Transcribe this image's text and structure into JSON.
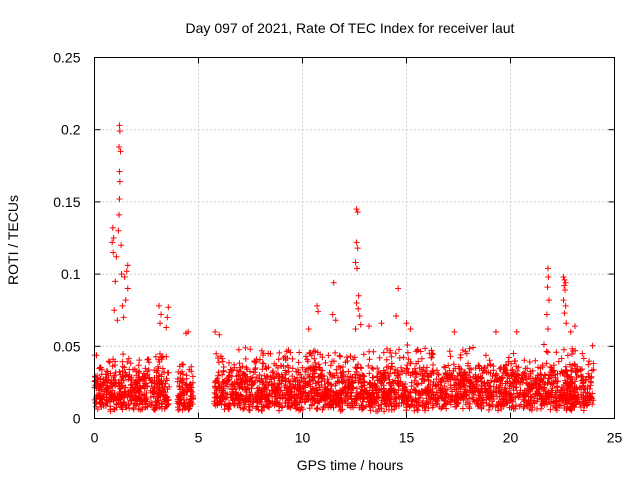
{
  "chart_data": {
    "type": "scatter",
    "title": "Day 097 of 2021, Rate Of TEC Index for receiver laut",
    "xlabel": "GPS time / hours",
    "ylabel": "ROTI / TECUs",
    "xlim": [
      0,
      25
    ],
    "ylim": [
      0,
      0.25
    ],
    "xticks": [
      0,
      5,
      10,
      15,
      20,
      25
    ],
    "xtick_labels": [
      "0",
      "5",
      "10",
      "15",
      "20",
      "25"
    ],
    "yticks": [
      0,
      0.05,
      0.1,
      0.15,
      0.2,
      0.25
    ],
    "ytick_labels": [
      "0",
      "0.05",
      "0.1",
      "0.15",
      "0.2",
      "0.25"
    ],
    "grid": true,
    "marker": "plus",
    "series": [
      {
        "name": "ROTI",
        "color": "#ff0000",
        "segments": [
          {
            "start": 0.0,
            "end": 3.6,
            "base": 0.018,
            "spread": 0.022,
            "max": 0.05
          },
          {
            "start": 4.0,
            "end": 4.75,
            "base": 0.018,
            "spread": 0.02,
            "max": 0.045
          },
          {
            "start": 5.75,
            "end": 24.0,
            "base": 0.018,
            "spread": 0.025,
            "max": 0.055
          }
        ],
        "peaks": [
          {
            "x": 1.2,
            "y": 0.203
          },
          {
            "x": 1.22,
            "y": 0.199
          },
          {
            "x": 1.18,
            "y": 0.188
          },
          {
            "x": 1.25,
            "y": 0.185
          },
          {
            "x": 1.2,
            "y": 0.171
          },
          {
            "x": 1.22,
            "y": 0.164
          },
          {
            "x": 1.2,
            "y": 0.152
          },
          {
            "x": 1.18,
            "y": 0.141
          },
          {
            "x": 1.15,
            "y": 0.13
          },
          {
            "x": 0.88,
            "y": 0.132
          },
          {
            "x": 0.92,
            "y": 0.125
          },
          {
            "x": 0.85,
            "y": 0.122
          },
          {
            "x": 1.28,
            "y": 0.12
          },
          {
            "x": 0.9,
            "y": 0.115
          },
          {
            "x": 1.05,
            "y": 0.112
          },
          {
            "x": 1.6,
            "y": 0.106
          },
          {
            "x": 1.55,
            "y": 0.102
          },
          {
            "x": 1.3,
            "y": 0.1
          },
          {
            "x": 1.45,
            "y": 0.098
          },
          {
            "x": 1.0,
            "y": 0.095
          },
          {
            "x": 1.6,
            "y": 0.09
          },
          {
            "x": 1.5,
            "y": 0.082
          },
          {
            "x": 1.35,
            "y": 0.078
          },
          {
            "x": 0.95,
            "y": 0.075
          },
          {
            "x": 1.4,
            "y": 0.07
          },
          {
            "x": 1.1,
            "y": 0.068
          },
          {
            "x": 3.1,
            "y": 0.078
          },
          {
            "x": 3.55,
            "y": 0.077
          },
          {
            "x": 3.2,
            "y": 0.072
          },
          {
            "x": 3.5,
            "y": 0.07
          },
          {
            "x": 3.15,
            "y": 0.066
          },
          {
            "x": 3.45,
            "y": 0.063
          },
          {
            "x": 4.5,
            "y": 0.06
          },
          {
            "x": 4.4,
            "y": 0.059
          },
          {
            "x": 5.8,
            "y": 0.06
          },
          {
            "x": 6.0,
            "y": 0.058
          },
          {
            "x": 10.3,
            "y": 0.062
          },
          {
            "x": 10.7,
            "y": 0.078
          },
          {
            "x": 10.75,
            "y": 0.074
          },
          {
            "x": 11.5,
            "y": 0.094
          },
          {
            "x": 11.45,
            "y": 0.072
          },
          {
            "x": 11.6,
            "y": 0.068
          },
          {
            "x": 12.6,
            "y": 0.145
          },
          {
            "x": 12.65,
            "y": 0.143
          },
          {
            "x": 12.6,
            "y": 0.122
          },
          {
            "x": 12.65,
            "y": 0.118
          },
          {
            "x": 12.55,
            "y": 0.108
          },
          {
            "x": 12.62,
            "y": 0.104
          },
          {
            "x": 12.7,
            "y": 0.085
          },
          {
            "x": 12.6,
            "y": 0.08
          },
          {
            "x": 12.68,
            "y": 0.076
          },
          {
            "x": 12.75,
            "y": 0.071
          },
          {
            "x": 12.8,
            "y": 0.065
          },
          {
            "x": 12.55,
            "y": 0.062
          },
          {
            "x": 14.6,
            "y": 0.09
          },
          {
            "x": 14.5,
            "y": 0.071
          },
          {
            "x": 15.2,
            "y": 0.062
          },
          {
            "x": 15.0,
            "y": 0.066
          },
          {
            "x": 13.8,
            "y": 0.066
          },
          {
            "x": 13.2,
            "y": 0.064
          },
          {
            "x": 17.3,
            "y": 0.06
          },
          {
            "x": 19.3,
            "y": 0.06
          },
          {
            "x": 20.3,
            "y": 0.06
          },
          {
            "x": 21.8,
            "y": 0.104
          },
          {
            "x": 21.82,
            "y": 0.098
          },
          {
            "x": 21.78,
            "y": 0.091
          },
          {
            "x": 21.85,
            "y": 0.082
          },
          {
            "x": 21.75,
            "y": 0.072
          },
          {
            "x": 21.8,
            "y": 0.062
          },
          {
            "x": 22.55,
            "y": 0.098
          },
          {
            "x": 22.6,
            "y": 0.096
          },
          {
            "x": 22.65,
            "y": 0.094
          },
          {
            "x": 22.58,
            "y": 0.092
          },
          {
            "x": 22.62,
            "y": 0.089
          },
          {
            "x": 22.55,
            "y": 0.082
          },
          {
            "x": 22.65,
            "y": 0.078
          },
          {
            "x": 22.6,
            "y": 0.073
          },
          {
            "x": 22.68,
            "y": 0.066
          },
          {
            "x": 23.1,
            "y": 0.064
          },
          {
            "x": 22.9,
            "y": 0.06
          }
        ]
      }
    ]
  }
}
